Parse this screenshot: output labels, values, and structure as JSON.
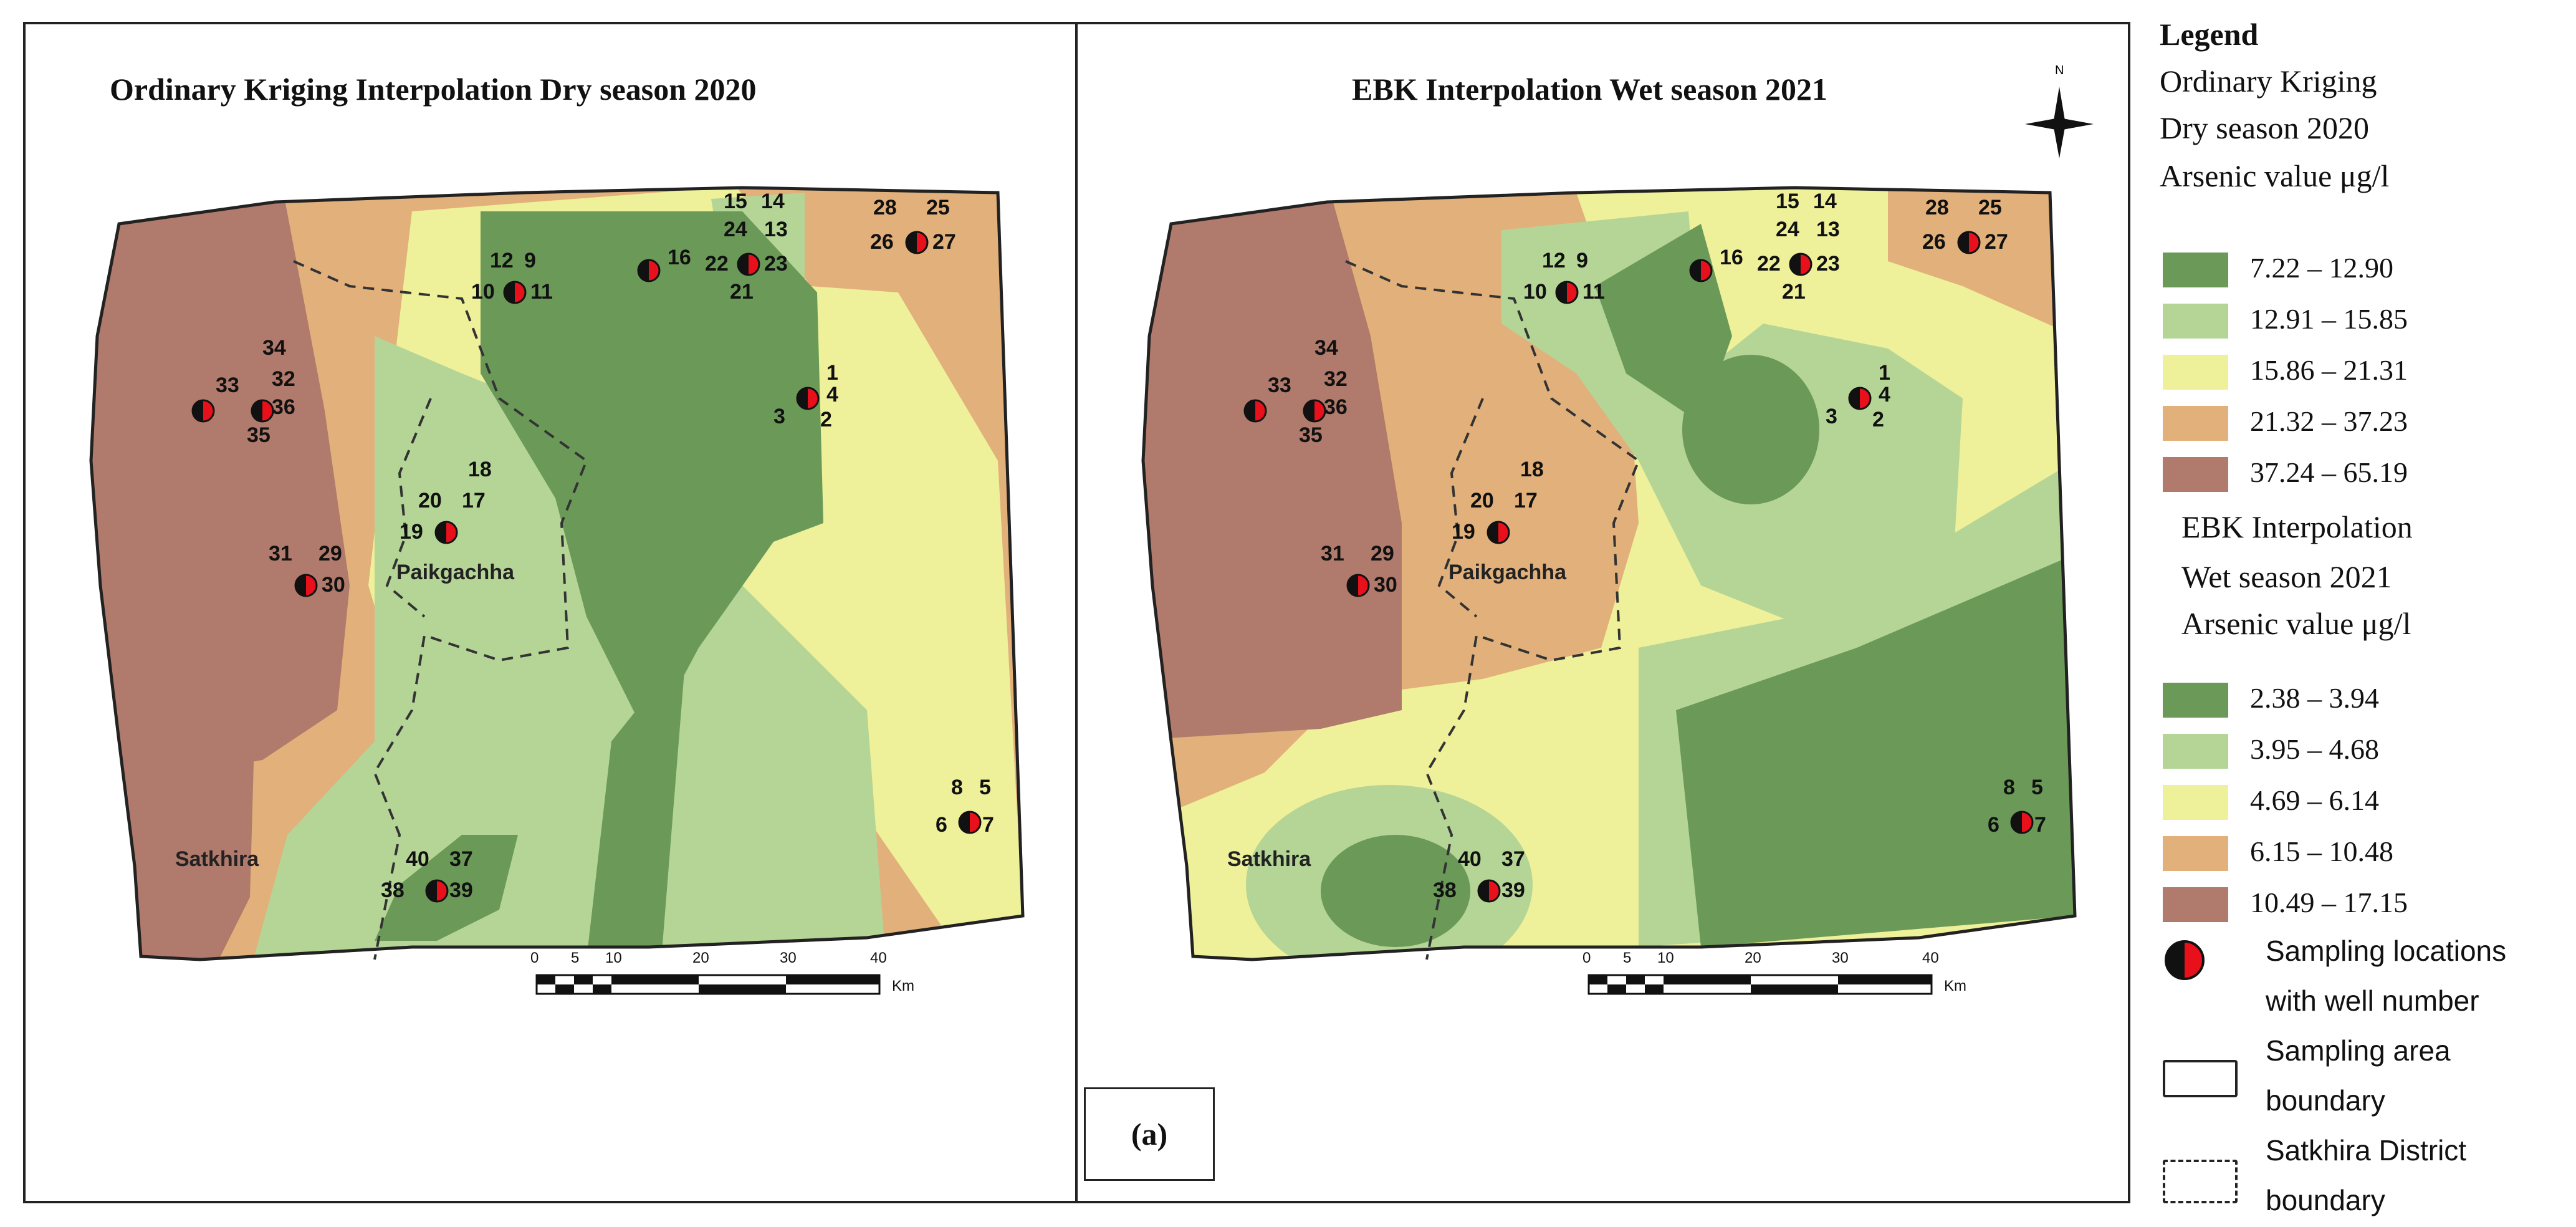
{
  "left_panel": {
    "title": "Ordinary Kriging Interpolation Dry season 2020",
    "place_labels": [
      "Satkhira",
      "Paikgachha"
    ],
    "scale": {
      "ticks": [
        "0",
        "5",
        "10",
        "20",
        "30",
        "40"
      ],
      "unit": "Km"
    }
  },
  "right_panel": {
    "title": "EBK Interpolation Wet season 2021",
    "north_label": "N",
    "place_labels": [
      "Satkhira",
      "Paikgachha"
    ],
    "scale": {
      "ticks": [
        "0",
        "5",
        "10",
        "20",
        "30",
        "40"
      ],
      "unit": "Km"
    },
    "panel_label": "(a)"
  },
  "well_numbers": [
    "1",
    "2",
    "3",
    "4",
    "5",
    "6",
    "7",
    "8",
    "9",
    "10",
    "11",
    "12",
    "13",
    "14",
    "15",
    "16",
    "17",
    "18",
    "19",
    "20",
    "21",
    "22",
    "23",
    "24",
    "25",
    "26",
    "27",
    "28",
    "29",
    "30",
    "31",
    "32",
    "33",
    "34",
    "35",
    "36",
    "37",
    "38",
    "39",
    "40"
  ],
  "legend": {
    "heading": "Legend",
    "ok_title": [
      "Ordinary Kriging",
      "Dry season 2020",
      "Arsenic value μg/l"
    ],
    "ok_classes": [
      {
        "label": "7.22 – 12.90",
        "color": "#6b9a58"
      },
      {
        "label": "12.91 – 15.85",
        "color": "#b4d596"
      },
      {
        "label": "15.86 – 21.31",
        "color": "#eef09a"
      },
      {
        "label": "21.32 – 37.23",
        "color": "#e2b07a"
      },
      {
        "label": "37.24 – 65.19",
        "color": "#b07a6c"
      }
    ],
    "ebk_title": [
      "EBK Interpolation",
      "Wet season 2021",
      "Arsenic value μg/l"
    ],
    "ebk_classes": [
      {
        "label": "2.38   – 3.94",
        "color": "#6b9a58"
      },
      {
        "label": "3.95   – 4.68",
        "color": "#b4d596"
      },
      {
        "label": "4.69   – 6.14",
        "color": "#eef09a"
      },
      {
        "label": "6.15   – 10.48",
        "color": "#e2b07a"
      },
      {
        "label": "10.49 – 17.15",
        "color": "#b07a6c"
      }
    ],
    "symbols": [
      {
        "name": "sampling-location",
        "lines": [
          "Sampling locations",
          "with well number"
        ]
      },
      {
        "name": "sampling-area-boundary",
        "lines": [
          "Sampling area",
          "boundary"
        ]
      },
      {
        "name": "district-boundary",
        "lines": [
          "Satkhira District",
          "boundary"
        ]
      }
    ]
  }
}
